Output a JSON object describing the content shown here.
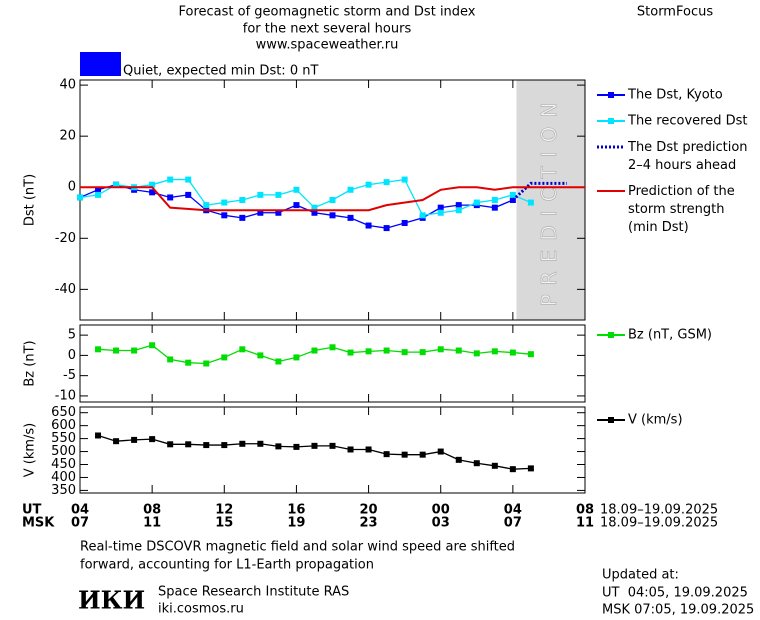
{
  "header": {
    "title_lines": [
      "Forecast of geomagnetic storm and Dst index",
      "for the next several hours",
      "www.spaceweather.ru"
    ],
    "brand": "StormFocus"
  },
  "status": {
    "color": "#0000ff",
    "text": "Quiet, expected min Dst: 0 nT"
  },
  "chart_data": [
    {
      "type": "line",
      "ylabel": "Dst (nT)",
      "xlim": [
        0,
        28
      ],
      "ylim": [
        -52,
        42
      ],
      "yticks": [
        40,
        20,
        0,
        -20,
        -40
      ],
      "xticks": [
        0,
        4,
        8,
        12,
        16,
        20,
        24,
        28
      ],
      "prediction_zone": [
        24.2,
        28
      ],
      "prediction_label": "PREDICTION",
      "zone_color": "#d9d9d9",
      "series": [
        {
          "name": "The Dst, Kyoto",
          "color": "#0000ff",
          "marker": "square",
          "dash": false,
          "x": [
            0,
            1,
            2,
            3,
            4,
            5,
            6,
            7,
            8,
            9,
            10,
            11,
            12,
            13,
            14,
            15,
            16,
            17,
            18,
            19,
            20,
            21,
            22,
            23,
            24
          ],
          "values": [
            -4,
            -1,
            1,
            -1,
            -2,
            -4,
            -3,
            -9,
            -11,
            -12,
            -10,
            -10,
            -7,
            -10,
            -11,
            -12,
            -15,
            -16,
            -14,
            -12,
            -8,
            -7,
            -7,
            -8,
            -5
          ]
        },
        {
          "name": "The recovered Dst",
          "color": "#00e5ff",
          "marker": "square",
          "dash": false,
          "x": [
            0,
            1,
            2,
            3,
            4,
            5,
            6,
            7,
            8,
            9,
            10,
            11,
            12,
            13,
            14,
            15,
            16,
            17,
            18,
            19,
            20,
            21,
            22,
            23,
            24,
            25
          ],
          "values": [
            -4,
            -3,
            1,
            0,
            1,
            3,
            3,
            -7,
            -6,
            -5,
            -3,
            -3,
            -1,
            -8,
            -5,
            -1,
            1,
            2,
            3,
            -11,
            -10,
            -9,
            -6,
            -5,
            -3,
            -6
          ]
        },
        {
          "name": "The Dst prediction\n2–4 hours ahead",
          "color": "#0000cc",
          "marker": "none",
          "dash": true,
          "x": [
            24,
            25,
            26,
            27
          ],
          "values": [
            -5,
            1.5,
            1.5,
            1.5
          ]
        },
        {
          "name": "Prediction of the\nstorm strength\n(min Dst)",
          "color": "#e00000",
          "marker": "none",
          "dash": false,
          "x": [
            0,
            4,
            5,
            7,
            16,
            17,
            19,
            20,
            21,
            22,
            23,
            24,
            28
          ],
          "values": [
            0,
            0,
            -8,
            -9,
            -9,
            -7,
            -5,
            -1,
            0,
            0,
            -1,
            0,
            0
          ]
        }
      ]
    },
    {
      "type": "line",
      "ylabel": "Bz (nT)",
      "xlim": [
        0,
        28
      ],
      "ylim": [
        -11.5,
        7.5
      ],
      "yticks": [
        5,
        0,
        -5,
        -10
      ],
      "xticks": [
        0,
        4,
        8,
        12,
        16,
        20,
        24,
        28
      ],
      "series": [
        {
          "name": "Bz (nT, GSM)",
          "color": "#00dd00",
          "marker": "square",
          "dash": false,
          "x": [
            1,
            2,
            3,
            4,
            5,
            6,
            7,
            8,
            9,
            10,
            11,
            12,
            13,
            14,
            15,
            16,
            17,
            18,
            19,
            20,
            21,
            22,
            23,
            24,
            25
          ],
          "values": [
            1.5,
            1.2,
            1.2,
            2.5,
            -1,
            -1.8,
            -2,
            -0.5,
            1.5,
            0,
            -1.5,
            -0.5,
            1.2,
            2,
            0.7,
            1,
            1.2,
            0.8,
            0.8,
            1.5,
            1.2,
            0.5,
            1,
            0.7,
            0.3
          ]
        }
      ]
    },
    {
      "type": "line",
      "ylabel": "V (km/s)",
      "xlim": [
        0,
        28
      ],
      "ylim": [
        340,
        672
      ],
      "yticks": [
        650,
        600,
        550,
        500,
        450,
        400,
        350
      ],
      "xticks": [
        {
          "value": 0,
          "label": "04"
        },
        {
          "value": 4,
          "label": "08"
        },
        {
          "value": 8,
          "label": "12"
        },
        {
          "value": 12,
          "label": "16"
        },
        {
          "value": 16,
          "label": "20"
        },
        {
          "value": 20,
          "label": "00"
        },
        {
          "value": 24,
          "label": "04"
        },
        {
          "value": 28,
          "label": "08"
        }
      ],
      "msk_ticks": [
        "07",
        "11",
        "15",
        "19",
        "23",
        "03",
        "07",
        "11"
      ],
      "row_labels": [
        "UT",
        "MSK"
      ],
      "date_labels": [
        "18.09–19.09.2025",
        "18.09–19.09.2025"
      ],
      "series": [
        {
          "name": "V (km/s)",
          "color": "#000000",
          "marker": "square",
          "dash": false,
          "x": [
            1,
            2,
            3,
            4,
            5,
            6,
            7,
            8,
            9,
            10,
            11,
            12,
            13,
            14,
            15,
            16,
            17,
            18,
            19,
            20,
            21,
            22,
            23,
            24,
            25
          ],
          "values": [
            562,
            540,
            545,
            548,
            528,
            528,
            525,
            525,
            530,
            530,
            520,
            518,
            522,
            522,
            508,
            508,
            490,
            488,
            488,
            500,
            468,
            455,
            445,
            432,
            435
          ]
        }
      ]
    }
  ],
  "footer": {
    "note_lines": [
      "Real-time DSCOVR magnetic field and solar wind speed are shifted",
      "forward, accounting for L1-Earth propagation"
    ],
    "logo": "ИКИ",
    "institute": "Space Research Institute RAS",
    "site": "iki.cosmos.ru",
    "updated_lines": [
      "Updated at:",
      "UT  04:05, 19.09.2025",
      "MSK 07:05, 19.09.2025"
    ]
  }
}
